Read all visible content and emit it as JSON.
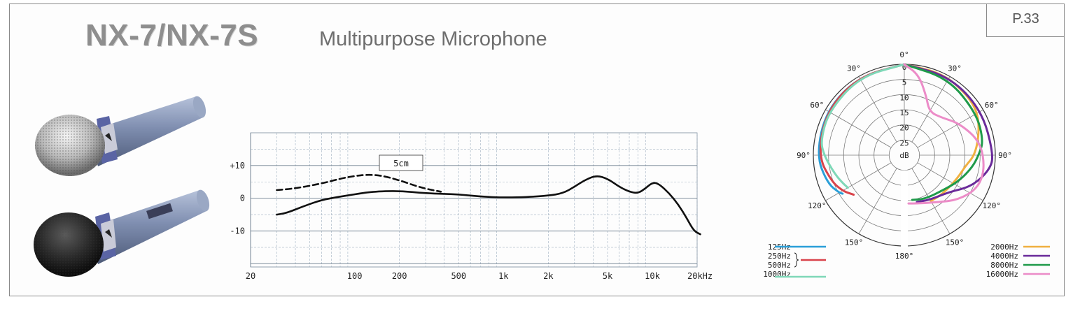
{
  "header": {
    "model": "NX-7/NX-7S",
    "subtitle": "Multipurpose Microphone",
    "page_number": "P.33"
  },
  "colors": {
    "125Hz": "#2a9fd8",
    "250Hz_500Hz": "#d9434b",
    "1000Hz": "#7fd8b8",
    "2000Hz": "#f0b040",
    "4000Hz": "#6a2a9a",
    "8000Hz": "#1f9a4a",
    "16000Hz": "#ec8cc8"
  },
  "chart_data": [
    {
      "type": "line",
      "xscale": "log",
      "x_ticks": [
        "20",
        "100",
        "200",
        "500",
        "1k",
        "2k",
        "5k",
        "10k",
        "20kHz"
      ],
      "y_ticks": [
        "+10",
        "0",
        "-10"
      ],
      "annotation": "5cm",
      "series": [
        {
          "style": "solid",
          "points": [
            [
              30,
              -5
            ],
            [
              35,
              -4.5
            ],
            [
              45,
              -2.5
            ],
            [
              60,
              -0.5
            ],
            [
              80,
              0.5
            ],
            [
              100,
              1.2
            ],
            [
              130,
              2
            ],
            [
              200,
              2.3
            ],
            [
              300,
              1.5
            ],
            [
              500,
              1.2
            ],
            [
              700,
              0.5
            ],
            [
              1000,
              0.2
            ],
            [
              1500,
              0.4
            ],
            [
              2000,
              0.8
            ],
            [
              2500,
              1.5
            ],
            [
              3000,
              3.5
            ],
            [
              3500,
              5.5
            ],
            [
              4200,
              7
            ],
            [
              5000,
              6
            ],
            [
              6000,
              3.5
            ],
            [
              7000,
              2
            ],
            [
              8000,
              1.5
            ],
            [
              9000,
              3
            ],
            [
              10000,
              4.8
            ],
            [
              11000,
              4.5
            ],
            [
              13000,
              1.5
            ],
            [
              15000,
              -2
            ],
            [
              17000,
              -6
            ],
            [
              19000,
              -10
            ],
            [
              21000,
              -11
            ]
          ]
        },
        {
          "style": "dashed",
          "points": [
            [
              30,
              2.5
            ],
            [
              40,
              3
            ],
            [
              60,
              4.5
            ],
            [
              80,
              6
            ],
            [
              100,
              6.8
            ],
            [
              120,
              7.2
            ],
            [
              150,
              7
            ],
            [
              200,
              5.5
            ],
            [
              280,
              3.2
            ],
            [
              380,
              2
            ]
          ]
        }
      ]
    },
    {
      "type": "polar",
      "angle_labels": [
        "0°",
        "30°",
        "60°",
        "90°",
        "120°",
        "150°",
        "180°"
      ],
      "radial_labels": [
        "0",
        "5",
        "10",
        "15",
        "20",
        "25"
      ],
      "radial_unit": "dB",
      "legend_left": [
        {
          "name": "125Hz",
          "color_key": "125Hz"
        },
        {
          "name": "250Hz",
          "color_key": "250Hz_500Hz"
        },
        {
          "name": "500Hz",
          "color_key": "250Hz_500Hz"
        },
        {
          "name": "1000Hz",
          "color_key": "1000Hz"
        }
      ],
      "legend_right": [
        {
          "name": "2000Hz",
          "color_key": "2000Hz"
        },
        {
          "name": "4000Hz",
          "color_key": "4000Hz"
        },
        {
          "name": "8000Hz",
          "color_key": "8000Hz"
        },
        {
          "name": "16000Hz",
          "color_key": "16000Hz"
        }
      ],
      "series_left": [
        {
          "name": "125Hz",
          "color_key": "125Hz",
          "points": [
            [
              0,
              0
            ],
            [
              30,
              0
            ],
            [
              60,
              0.3
            ],
            [
              90,
              1
            ],
            [
              110,
              3
            ],
            [
              120,
              5.2
            ],
            [
              122,
              6
            ]
          ]
        },
        {
          "name": "250Hz/500Hz",
          "color_key": "250Hz_500Hz",
          "points": [
            [
              0,
              0
            ],
            [
              30,
              0
            ],
            [
              60,
              0.5
            ],
            [
              90,
              1.5
            ],
            [
              110,
              4.5
            ],
            [
              120,
              6.5
            ],
            [
              125,
              8
            ],
            [
              128,
              8.8
            ]
          ]
        },
        {
          "name": "1000Hz",
          "color_key": "1000Hz",
          "points": [
            [
              0,
              0
            ],
            [
              30,
              0.2
            ],
            [
              60,
              1.2
            ],
            [
              80,
              2
            ],
            [
              90,
              3.5
            ],
            [
              105,
              6.2
            ],
            [
              115,
              7.8
            ],
            [
              120,
              8.5
            ]
          ]
        }
      ],
      "series_right": [
        {
          "name": "2000Hz",
          "color_key": "2000Hz",
          "points": [
            [
              0,
              0
            ],
            [
              25,
              0.2
            ],
            [
              45,
              1.2
            ],
            [
              60,
              2
            ],
            [
              75,
              4.5
            ],
            [
              90,
              6.8
            ],
            [
              100,
              9.5
            ],
            [
              115,
              11
            ],
            [
              135,
              12
            ],
            [
              150,
              12.5
            ]
          ]
        },
        {
          "name": "4000Hz",
          "color_key": "4000Hz",
          "points": [
            [
              0,
              0
            ],
            [
              30,
              0
            ],
            [
              60,
              0.5
            ],
            [
              90,
              0.5
            ],
            [
              100,
              1.5
            ],
            [
              115,
              5.5
            ],
            [
              130,
              11
            ],
            [
              150,
              13
            ],
            [
              165,
              14
            ]
          ]
        },
        {
          "name": "8000Hz",
          "color_key": "8000Hz",
          "points": [
            [
              0,
              0
            ],
            [
              30,
              0.8
            ],
            [
              60,
              2.5
            ],
            [
              80,
              3.5
            ],
            [
              90,
              5.5
            ],
            [
              100,
              7.2
            ],
            [
              115,
              10
            ],
            [
              130,
              12.5
            ],
            [
              155,
              14
            ],
            [
              170,
              15
            ]
          ]
        },
        {
          "name": "16000Hz",
          "color_key": "16000Hz",
          "points": [
            [
              0,
              0
            ],
            [
              10,
              3
            ],
            [
              20,
              9
            ],
            [
              30,
              13.5
            ],
            [
              45,
              12.5
            ],
            [
              60,
              9
            ],
            [
              80,
              4.5
            ],
            [
              100,
              3
            ],
            [
              115,
              3.5
            ],
            [
              130,
              7
            ],
            [
              145,
              11
            ],
            [
              165,
              13.5
            ],
            [
              175,
              14
            ]
          ]
        }
      ]
    }
  ]
}
